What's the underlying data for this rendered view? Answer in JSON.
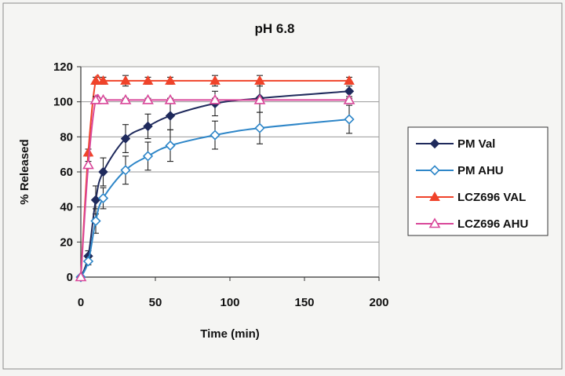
{
  "chart_data": {
    "type": "line",
    "title": "pH 6.8",
    "xlabel": "Time (min)",
    "ylabel": "% Released",
    "xlim": [
      0,
      200
    ],
    "ylim": [
      0,
      120
    ],
    "x_ticks": [
      0,
      50,
      100,
      150,
      200
    ],
    "y_ticks": [
      0,
      20,
      40,
      60,
      80,
      100,
      120
    ],
    "grid": "horizontal",
    "legend_position": "right",
    "series": [
      {
        "name": "PM Val",
        "color": "#1f2a5c",
        "marker": "diamond-filled",
        "x": [
          0,
          5,
          10,
          15,
          30,
          45,
          60,
          90,
          120,
          180
        ],
        "y": [
          0,
          12,
          44,
          60,
          79,
          86,
          92,
          99,
          102,
          106
        ],
        "err": [
          0,
          3,
          8,
          8,
          8,
          7,
          8,
          7,
          8,
          3
        ]
      },
      {
        "name": "PM AHU",
        "color": "#2e86c8",
        "marker": "diamond-open",
        "x": [
          0,
          5,
          10,
          15,
          30,
          45,
          60,
          90,
          120,
          180
        ],
        "y": [
          0,
          9,
          32,
          45,
          61,
          69,
          75,
          81,
          85,
          90
        ],
        "err": [
          0,
          2,
          7,
          6,
          8,
          8,
          9,
          8,
          9,
          8
        ]
      },
      {
        "name": "LCZ696 VAL",
        "color": "#f0432a",
        "marker": "triangle-filled",
        "x": [
          0,
          5,
          10,
          15,
          30,
          45,
          60,
          90,
          120,
          180
        ],
        "y": [
          0,
          71,
          112,
          112,
          112,
          112,
          112,
          112,
          112,
          112
        ],
        "err": [
          0,
          2,
          2,
          2,
          3,
          2,
          2,
          3,
          3,
          2
        ]
      },
      {
        "name": "LCZ696 AHU",
        "color": "#d9479a",
        "marker": "triangle-open",
        "x": [
          0,
          5,
          10,
          15,
          30,
          45,
          60,
          90,
          120,
          180
        ],
        "y": [
          0,
          64,
          101,
          101,
          101,
          101,
          101,
          101,
          101,
          101
        ],
        "err": [
          0,
          2,
          2,
          1,
          1,
          1,
          1,
          1,
          1,
          1
        ]
      }
    ]
  }
}
